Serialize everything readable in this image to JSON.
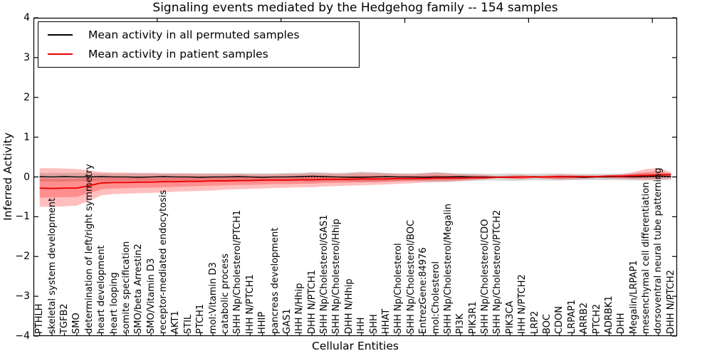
{
  "chart_data": {
    "type": "line",
    "title": "Signaling events mediated by the Hedgehog family -- 154 samples",
    "xlabel": "Cellular Entities",
    "ylabel": "Inferred Activity",
    "ylim": [
      -4,
      4
    ],
    "ytick_values": [
      4,
      3,
      2,
      1,
      0,
      -1,
      -2,
      -3,
      -4
    ],
    "ytick_labels": [
      "4",
      "3",
      "2",
      "1",
      "0",
      "−1",
      "−2",
      "−3",
      "−4"
    ],
    "grid": false,
    "legend_position": "upper left",
    "legend": [
      {
        "label": "Mean activity in all permuted samples",
        "color": "#000000"
      },
      {
        "label": "Mean activity in patient samples",
        "color": "#ee0000"
      }
    ],
    "zero_line": {
      "y": 0,
      "style": "dotted",
      "color": "#000000"
    },
    "categories": [
      "PTHLH",
      "skeletal system development",
      "TGFB2",
      "SMO",
      "determination of left/right symmetry",
      "heart development",
      "heart looping",
      "somite specification",
      "SMO/beta Arrestin2",
      "SMO/Vitamin D3",
      "receptor-mediated endocytosis",
      "AKT1",
      "STIL",
      "PTCH1",
      "mol:Vitamin D3",
      "catabolic process",
      "SHH Np/Cholesterol/PTCH1",
      "IHH N/PTCH1",
      "HHIP",
      "pancreas development",
      "GAS1",
      "IHH N/Hhip",
      "DHH N/PTCH1",
      "SHH Np/Cholesterol/GAS1",
      "SHH Np/Cholesterol/Hhip",
      "DHH N/Hhip",
      "IHH",
      "SHH",
      "HHAT",
      "SHH Np/Cholesterol",
      "SHH Np/Cholesterol/BOC",
      "EntrezGene:84976",
      "mol:Cholesterol",
      "SHH Np/Cholesterol/Megalin",
      "PI3K",
      "PIK3R1",
      "SHH Np/Cholesterol/CDO",
      "SHH Np/Cholesterol/PTCH2",
      "PIK3CA",
      "IHH N/PTCH2",
      "LRP2",
      "BOC",
      "CDON",
      "LRPAP1",
      "ARRB2",
      "PTCH2",
      "ADRBK1",
      "DHH",
      "Megalin/LRPAP1",
      "mesenchymal cell differentiation",
      "dorsoventral neural tube patterning",
      "DHH N/PTCH2"
    ],
    "series": [
      {
        "name": "Mean activity in all permuted samples",
        "color": "#000000",
        "values": [
          0.01,
          0.0,
          0.01,
          0.0,
          0.0,
          0.01,
          0.0,
          0.0,
          -0.01,
          0.0,
          0.01,
          0.0,
          0.0,
          -0.01,
          0.0,
          0.0,
          0.01,
          0.0,
          -0.01,
          0.0,
          0.0,
          0.01,
          0.02,
          0.01,
          0.0,
          -0.01,
          -0.01,
          0.0,
          0.01,
          0.0,
          0.0,
          -0.01,
          0.0,
          0.0,
          0.01,
          0.0,
          0.0,
          -0.01,
          0.0,
          0.0,
          0.01,
          0.0,
          0.0,
          0.0,
          -0.01,
          0.0,
          0.0,
          0.01,
          0.0,
          0.01,
          0.02,
          0.01
        ]
      },
      {
        "name": "Mean activity in patient samples",
        "color": "#ee0000",
        "values": [
          -0.28,
          -0.29,
          -0.28,
          -0.28,
          -0.22,
          -0.15,
          -0.14,
          -0.14,
          -0.13,
          -0.13,
          -0.12,
          -0.12,
          -0.11,
          -0.11,
          -0.1,
          -0.1,
          -0.09,
          -0.09,
          -0.08,
          -0.08,
          -0.08,
          -0.07,
          -0.07,
          -0.06,
          -0.06,
          -0.06,
          -0.05,
          -0.05,
          -0.05,
          -0.04,
          -0.04,
          -0.04,
          -0.03,
          -0.03,
          -0.03,
          -0.02,
          -0.02,
          -0.01,
          -0.01,
          0.0,
          0.0,
          0.0,
          0.01,
          0.01,
          0.01,
          0.01,
          0.02,
          0.02,
          0.03,
          0.04,
          0.05,
          0.06
        ]
      }
    ],
    "bands": [
      {
        "name": "permuted-samples-range",
        "color": "rgba(125,125,125,0.30)",
        "upper": [
          0.1,
          0.1,
          0.1,
          0.1,
          0.1,
          0.09,
          0.09,
          0.09,
          0.09,
          0.09,
          0.09,
          0.09,
          0.09,
          0.09,
          0.09,
          0.09,
          0.09,
          0.09,
          0.09,
          0.09,
          0.1,
          0.1,
          0.12,
          0.11,
          0.1,
          0.11,
          0.13,
          0.12,
          0.1,
          0.09,
          0.09,
          0.1,
          0.12,
          0.1,
          0.09,
          0.09,
          0.08,
          0.08,
          0.09,
          0.08,
          0.08,
          0.09,
          0.09,
          0.08,
          0.08,
          0.08,
          0.08,
          0.08,
          0.09,
          0.09,
          0.09,
          0.08
        ],
        "lower": [
          -0.12,
          -0.12,
          -0.12,
          -0.11,
          -0.11,
          -0.1,
          -0.1,
          -0.1,
          -0.1,
          -0.1,
          -0.1,
          -0.1,
          -0.1,
          -0.1,
          -0.1,
          -0.1,
          -0.09,
          -0.09,
          -0.09,
          -0.09,
          -0.1,
          -0.1,
          -0.12,
          -0.11,
          -0.1,
          -0.11,
          -0.13,
          -0.12,
          -0.11,
          -0.1,
          -0.1,
          -0.11,
          -0.12,
          -0.12,
          -0.11,
          -0.1,
          -0.09,
          -0.09,
          -0.1,
          -0.09,
          -0.08,
          -0.09,
          -0.09,
          -0.08,
          -0.08,
          -0.08,
          -0.08,
          -0.08,
          -0.09,
          -0.09,
          -0.08,
          -0.08
        ]
      },
      {
        "name": "patient-samples-range-outer",
        "color": "rgba(255,0,0,0.25)",
        "upper": [
          0.22,
          0.22,
          0.21,
          0.2,
          0.16,
          0.12,
          0.11,
          0.11,
          0.1,
          0.1,
          0.09,
          0.09,
          0.09,
          0.08,
          0.08,
          0.08,
          0.08,
          0.07,
          0.07,
          0.07,
          0.08,
          0.08,
          0.1,
          0.09,
          0.08,
          0.09,
          0.11,
          0.1,
          0.09,
          0.08,
          0.07,
          0.09,
          0.11,
          0.09,
          0.07,
          0.06,
          0.05,
          0.02,
          0.04,
          0.05,
          0.02,
          0.04,
          0.06,
          0.05,
          0.04,
          0.03,
          0.05,
          0.07,
          0.12,
          0.2,
          0.22,
          0.12
        ],
        "lower": [
          -0.75,
          -0.75,
          -0.74,
          -0.72,
          -0.6,
          -0.46,
          -0.43,
          -0.42,
          -0.41,
          -0.4,
          -0.39,
          -0.37,
          -0.36,
          -0.35,
          -0.34,
          -0.32,
          -0.31,
          -0.3,
          -0.29,
          -0.28,
          -0.27,
          -0.26,
          -0.26,
          -0.24,
          -0.23,
          -0.22,
          -0.21,
          -0.2,
          -0.19,
          -0.17,
          -0.16,
          -0.14,
          -0.13,
          -0.12,
          -0.1,
          -0.08,
          -0.06,
          -0.02,
          -0.05,
          -0.06,
          -0.03,
          -0.05,
          -0.07,
          -0.06,
          -0.05,
          -0.03,
          -0.04,
          -0.05,
          -0.06,
          -0.07,
          -0.06,
          -0.04
        ]
      },
      {
        "name": "patient-samples-range-inner",
        "color": "rgba(255,0,0,0.25)",
        "upper": [
          -0.03,
          -0.04,
          -0.04,
          -0.04,
          -0.03,
          -0.02,
          -0.02,
          -0.02,
          -0.02,
          -0.02,
          -0.02,
          -0.02,
          -0.01,
          -0.02,
          -0.01,
          -0.01,
          0.0,
          -0.01,
          0.0,
          0.0,
          0.0,
          0.01,
          0.02,
          0.02,
          0.01,
          0.02,
          0.03,
          0.03,
          0.02,
          0.02,
          0.02,
          0.03,
          0.04,
          0.03,
          0.02,
          0.02,
          0.02,
          0.01,
          0.02,
          0.02,
          0.01,
          0.02,
          0.03,
          0.03,
          0.02,
          0.02,
          0.03,
          0.04,
          0.08,
          0.12,
          0.14,
          0.09
        ],
        "lower": [
          -0.52,
          -0.52,
          -0.51,
          -0.5,
          -0.41,
          -0.31,
          -0.29,
          -0.28,
          -0.27,
          -0.27,
          -0.26,
          -0.25,
          -0.24,
          -0.23,
          -0.22,
          -0.21,
          -0.2,
          -0.2,
          -0.19,
          -0.18,
          -0.18,
          -0.17,
          -0.17,
          -0.15,
          -0.15,
          -0.14,
          -0.13,
          -0.13,
          -0.12,
          -0.11,
          -0.1,
          -0.09,
          -0.08,
          -0.08,
          -0.07,
          -0.05,
          -0.04,
          -0.02,
          -0.03,
          -0.04,
          -0.02,
          -0.03,
          -0.04,
          -0.03,
          -0.02,
          -0.01,
          -0.01,
          -0.02,
          -0.02,
          -0.02,
          -0.01,
          0.01
        ]
      }
    ]
  }
}
